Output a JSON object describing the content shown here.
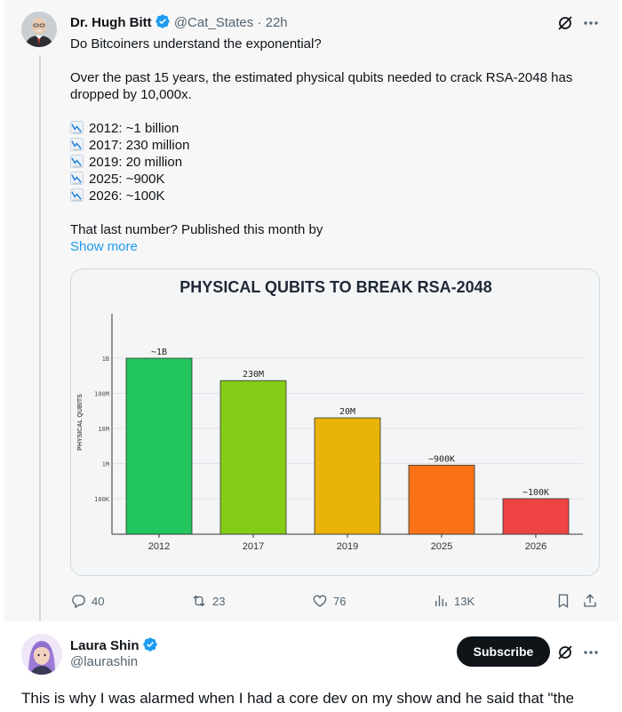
{
  "tweet": {
    "author_name": "Dr. Hugh Bitt",
    "handle": "@Cat_States",
    "separator": "·",
    "time": "22h",
    "line1": "Do Bitcoiners understand the exponential?",
    "line2": "Over the past 15 years, the estimated physical qubits needed to crack RSA-2048 has",
    "line3": "dropped by 10,000x.",
    "list": [
      "2012: ~1 billion",
      "2017: 230 million",
      "2019: 20 million",
      "2025: ~900K",
      "2026: ~100K"
    ],
    "closing": "That last number? Published this month by",
    "show_more": "Show more",
    "actions": {
      "replies": "40",
      "reposts": "23",
      "likes": "76",
      "views": "13K"
    }
  },
  "chart_data": {
    "type": "bar",
    "title": "PHYSICAL QUBITS TO BREAK RSA-2048",
    "ylabel": "PHYSICAL QUBITS",
    "xlabel": "",
    "y_scale": "log",
    "y_ticks": [
      {
        "label": "100K",
        "value": 100000
      },
      {
        "label": "1M",
        "value": 1000000
      },
      {
        "label": "10M",
        "value": 10000000
      },
      {
        "label": "100M",
        "value": 100000000
      },
      {
        "label": "1B",
        "value": 1000000000
      }
    ],
    "categories": [
      "2012",
      "2017",
      "2019",
      "2025",
      "2026"
    ],
    "values": [
      1000000000,
      230000000,
      20000000,
      900000,
      100000
    ],
    "data_labels": [
      "~1B",
      "230M",
      "20M",
      "~900K",
      "~100K"
    ],
    "colors": [
      "#22c55e",
      "#84cc16",
      "#eab308",
      "#f97316",
      "#ef4444"
    ],
    "grid": true
  },
  "reply": {
    "author_name": "Laura Shin",
    "handle": "@laurashin",
    "subscribe_label": "Subscribe",
    "text_line1": "This is why I was alarmed when I had a core dev on my show and he said that \"the"
  },
  "colors": {
    "link": "#1d9bf0",
    "verified": "#1d9bf0",
    "muted": "#536471"
  }
}
